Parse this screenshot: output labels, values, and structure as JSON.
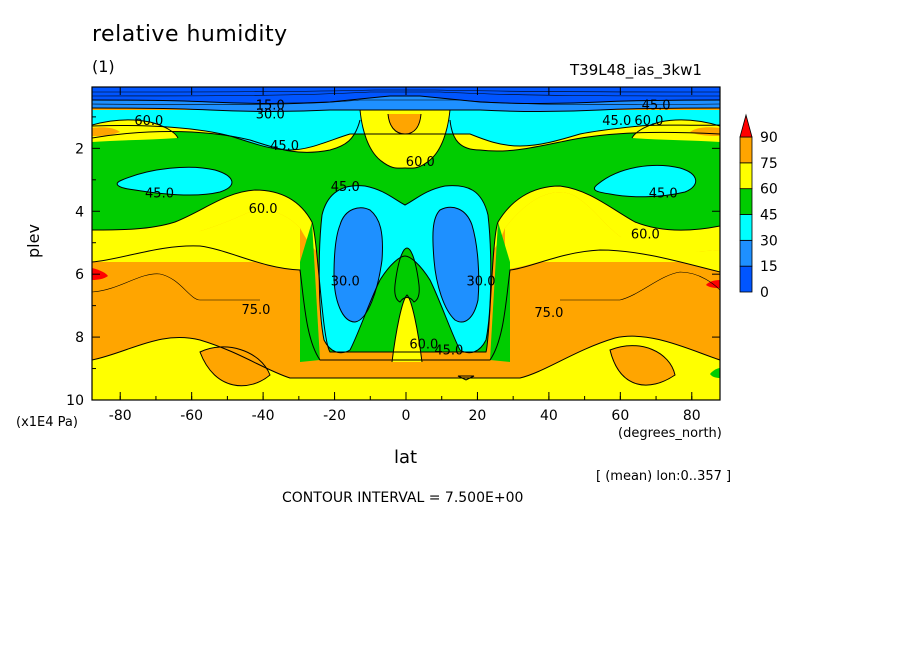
{
  "header": {
    "title": "relative humidity",
    "subtitle": "(1)",
    "run_name": "T39L48_ias_3kw1"
  },
  "footer": {
    "mean_info": "[ (mean) lon:0..357 ]",
    "contour_interval": "CONTOUR INTERVAL = 7.500E+00"
  },
  "chart_data": {
    "type": "heatmap",
    "title": "relative humidity",
    "subtitle": "(1)",
    "xlabel": "lat",
    "x_unit": "(degrees_north)",
    "ylabel": "plev",
    "y_unit": "(x1E4 Pa)",
    "xlim": [
      -87.9,
      87.9
    ],
    "ylim": [
      10,
      0.05
    ],
    "x_ticks": [
      -80,
      -60,
      -40,
      -20,
      0,
      20,
      40,
      60,
      80
    ],
    "x_tick_labels": [
      "-80",
      "-60",
      "-40",
      "-20",
      "0",
      "20",
      "40",
      "60",
      "80"
    ],
    "y_ticks": [
      2,
      4,
      6,
      8,
      10
    ],
    "y_tick_labels": [
      "2",
      "4",
      "6",
      "8",
      "10"
    ],
    "contour_interval": 7.5,
    "color_levels": [
      0,
      15,
      30,
      45,
      60,
      75,
      90
    ],
    "colorbar_labels": [
      "90",
      "75",
      "60",
      "45",
      "30",
      "15",
      "0"
    ],
    "colors": [
      "#0055ff",
      "#1e90ff",
      "#00ffff",
      "#00cc00",
      "#ffff00",
      "#ffa500",
      "#ff0000"
    ],
    "contour_labels": [
      {
        "text": "15.0",
        "lat": -38,
        "plev": 0.6
      },
      {
        "text": "30.0",
        "lat": -38,
        "plev": 0.9
      },
      {
        "text": "45.0",
        "lat": -34,
        "plev": 1.9
      },
      {
        "text": "60.0",
        "lat": -72,
        "plev": 1.1
      },
      {
        "text": "45.0",
        "lat": 70,
        "plev": 0.6
      },
      {
        "text": "45.0",
        "lat": 59,
        "plev": 1.1
      },
      {
        "text": "60.0",
        "lat": 68,
        "plev": 1.1
      },
      {
        "text": "60.0",
        "lat": 4,
        "plev": 2.4
      },
      {
        "text": "45.0",
        "lat": -69,
        "plev": 3.4
      },
      {
        "text": "45.0",
        "lat": -17,
        "plev": 3.2
      },
      {
        "text": "60.0",
        "lat": -40,
        "plev": 3.9
      },
      {
        "text": "45.0",
        "lat": 72,
        "plev": 3.4
      },
      {
        "text": "60.0",
        "lat": 67,
        "plev": 4.7
      },
      {
        "text": "30.0",
        "lat": -17,
        "plev": 6.2
      },
      {
        "text": "30.0",
        "lat": 21,
        "plev": 6.2
      },
      {
        "text": "75.0",
        "lat": -42,
        "plev": 7.1
      },
      {
        "text": "75.0",
        "lat": 40,
        "plev": 7.2
      },
      {
        "text": "60.0",
        "lat": 5,
        "plev": 8.2
      },
      {
        "text": "45.0",
        "lat": 12,
        "plev": 8.4
      }
    ]
  }
}
